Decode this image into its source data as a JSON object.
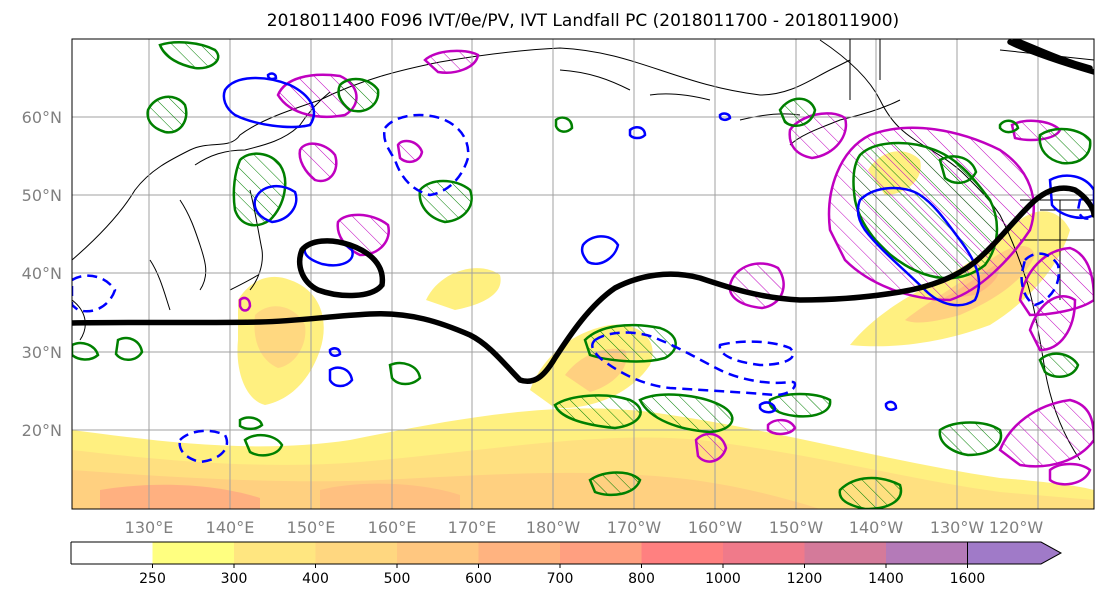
{
  "title": "2018011400 F096 IVT/θe/PV, IVT Landfall PC (2018011700 - 2018011900)",
  "map": {
    "lat_labels": [
      "20°N",
      "30°N",
      "40°N",
      "50°N",
      "60°N"
    ],
    "lon_labels": [
      "130°E",
      "140°E",
      "150°E",
      "160°E",
      "170°E",
      "180°W",
      "170°W",
      "160°W",
      "150°W",
      "140°W",
      "130°W",
      "120°W"
    ]
  },
  "colorbar": {
    "ticks": [
      "250",
      "300",
      "400",
      "500",
      "600",
      "700",
      "800",
      "1000",
      "1200",
      "1400",
      "1600"
    ],
    "colors": [
      "#ffffff",
      "#ffff80",
      "#ffe680",
      "#ffd780",
      "#ffc780",
      "#ffb380",
      "#ff9f80",
      "#ff8080",
      "#f07a8a",
      "#d47a9a",
      "#b47ab8",
      "#a07ac8"
    ]
  },
  "colors": {
    "jet_line": "#000000",
    "pv_positive": "#008000",
    "theta_e": "#0000ff",
    "ivt_pc": "#c000c0"
  }
}
